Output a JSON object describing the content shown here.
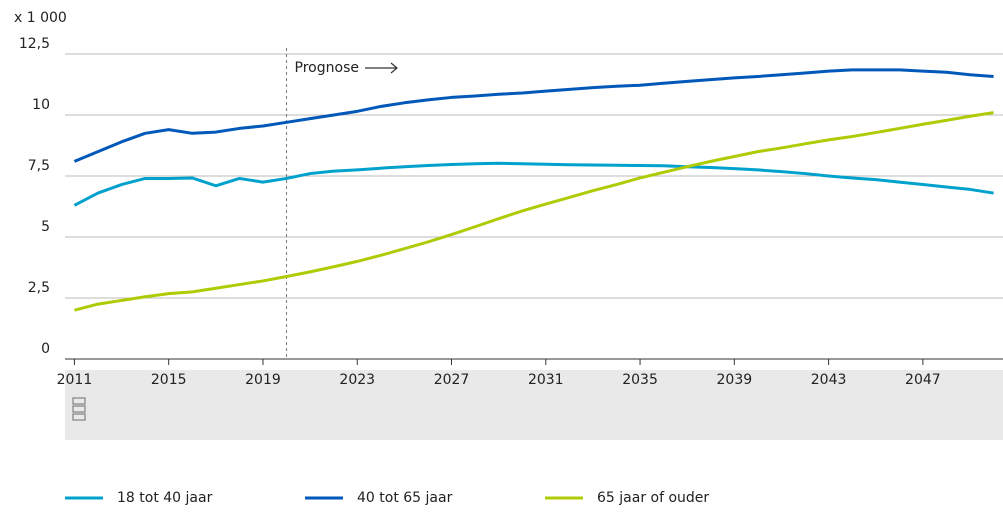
{
  "chart_data": {
    "type": "line",
    "unit_label": "x 1 000",
    "annotation": {
      "text": "Prognose",
      "x": 2020
    },
    "x": [
      2011,
      2012,
      2013,
      2014,
      2015,
      2016,
      2017,
      2018,
      2019,
      2020,
      2021,
      2022,
      2023,
      2024,
      2025,
      2026,
      2027,
      2028,
      2029,
      2030,
      2031,
      2032,
      2033,
      2034,
      2035,
      2036,
      2037,
      2038,
      2039,
      2040,
      2041,
      2042,
      2043,
      2044,
      2045,
      2046,
      2047,
      2048,
      2049,
      2050
    ],
    "series": [
      {
        "name": "18 tot 40 jaar",
        "color": "#00a1cd",
        "values": [
          6.3,
          6.8,
          7.15,
          7.4,
          7.4,
          7.42,
          7.1,
          7.4,
          7.25,
          7.4,
          7.6,
          7.7,
          7.75,
          7.82,
          7.88,
          7.93,
          7.97,
          8.0,
          8.02,
          8.0,
          7.98,
          7.96,
          7.95,
          7.94,
          7.93,
          7.92,
          7.88,
          7.85,
          7.8,
          7.75,
          7.68,
          7.6,
          7.5,
          7.42,
          7.35,
          7.25,
          7.15,
          7.05,
          6.95,
          6.8
        ]
      },
      {
        "name": "40 tot 65 jaar",
        "color": "#0058b8",
        "values": [
          8.1,
          8.5,
          8.9,
          9.25,
          9.4,
          9.25,
          9.3,
          9.45,
          9.55,
          9.7,
          9.85,
          10.0,
          10.15,
          10.35,
          10.5,
          10.62,
          10.72,
          10.78,
          10.85,
          10.9,
          10.98,
          11.05,
          11.12,
          11.18,
          11.22,
          11.3,
          11.38,
          11.45,
          11.52,
          11.58,
          11.65,
          11.72,
          11.8,
          11.85,
          11.85,
          11.85,
          11.8,
          11.75,
          11.65,
          11.58
        ]
      },
      {
        "name": "65 jaar of ouder",
        "color": "#afcb05",
        "values": [
          2.0,
          2.25,
          2.4,
          2.55,
          2.68,
          2.75,
          2.9,
          3.05,
          3.2,
          3.38,
          3.57,
          3.78,
          4.0,
          4.25,
          4.52,
          4.8,
          5.1,
          5.42,
          5.75,
          6.07,
          6.35,
          6.62,
          6.9,
          7.15,
          7.42,
          7.65,
          7.88,
          8.1,
          8.3,
          8.5,
          8.65,
          8.82,
          8.98,
          9.12,
          9.28,
          9.45,
          9.62,
          9.78,
          9.95,
          10.1
        ]
      }
    ],
    "xlim": [
      2010.6,
      2050.4
    ],
    "xticks": [
      2011,
      2015,
      2019,
      2023,
      2027,
      2031,
      2035,
      2039,
      2043,
      2047
    ],
    "ylim": [
      0,
      12.5
    ],
    "yticks": [
      0,
      {
        "value": 2.5,
        "label": "2,5"
      },
      5,
      {
        "value": 7.5,
        "label": "7,5"
      },
      10,
      {
        "value": 12.5,
        "label": "12,5"
      }
    ],
    "grid": true
  }
}
